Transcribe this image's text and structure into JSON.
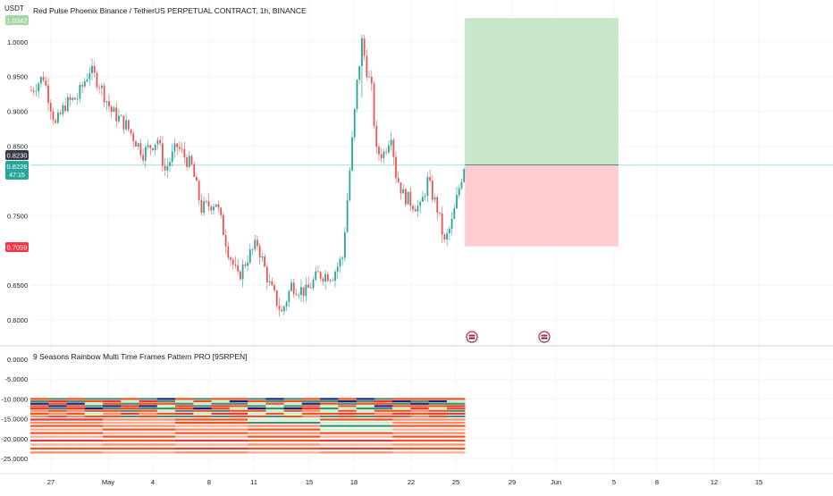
{
  "header": {
    "title": "Red Pulse Phoenix Binance / TetherUS PERPETUAL CONTRACT, 1h, BINANCE",
    "currency": "USDT"
  },
  "price_axis": {
    "top_badge": "1.0342",
    "ticks": [
      "1.0000",
      "0.9500",
      "0.9000",
      "0.8500",
      "0.7500",
      "0.6500",
      "0.6000"
    ]
  },
  "badges": {
    "entry": "0.8230",
    "last_price": "0.8226",
    "countdown": "47:15",
    "stop": "0.7059"
  },
  "indicator": {
    "title": "9 Seasons Rainbow Multi Time Frames Pattern PRO [9SRPEN]",
    "ticks": [
      "0.0000",
      "-5.0000",
      "-10.0000",
      "-15.0000",
      "-20.0000",
      "-25.0000"
    ]
  },
  "time_axis": {
    "labels": [
      "27",
      "May",
      "4",
      "8",
      "11",
      "15",
      "18",
      "22",
      "25",
      "29",
      "Jun",
      "5",
      "8",
      "12",
      "15"
    ]
  },
  "colors": {
    "up": "#26a69a",
    "down": "#ef5350",
    "profit_zone": "#c8e6c9",
    "loss_zone": "#ffcdd2",
    "stop_badge": "#f23645",
    "entry_badge": "#363a45",
    "last_badge": "#26a69a",
    "rainbow": [
      "#f4511e",
      "#ff8a65",
      "#e53935",
      "#4e8a6e",
      "#1a237e",
      "#b9f6ca",
      "#ffab91"
    ]
  },
  "chart_data": [
    {
      "type": "candlestick",
      "title": "Red Pulse Phoenix Binance / TetherUS PERPETUAL CONTRACT, 1h, BINANCE",
      "ylabel": "USDT",
      "timeframe": "1h",
      "ylim": [
        0.58,
        1.05
      ],
      "x_labels": [
        "27",
        "May",
        "4",
        "8",
        "11",
        "15",
        "18",
        "22",
        "25",
        "29",
        "Jun",
        "5",
        "8",
        "12",
        "15"
      ],
      "price_path": [
        [
          0,
          0.93
        ],
        [
          5,
          0.95
        ],
        [
          10,
          0.88
        ],
        [
          14,
          0.91
        ],
        [
          19,
          0.92
        ],
        [
          24,
          0.96
        ],
        [
          28,
          0.94
        ],
        [
          33,
          0.9
        ],
        [
          39,
          0.88
        ],
        [
          46,
          0.84
        ],
        [
          52,
          0.86
        ],
        [
          55,
          0.815
        ],
        [
          60,
          0.85
        ],
        [
          66,
          0.82
        ],
        [
          70,
          0.76
        ],
        [
          76,
          0.77
        ],
        [
          81,
          0.7
        ],
        [
          85,
          0.66
        ],
        [
          89,
          0.69
        ],
        [
          93,
          0.71
        ],
        [
          98,
          0.65
        ],
        [
          103,
          0.61
        ],
        [
          107,
          0.65
        ],
        [
          113,
          0.64
        ],
        [
          118,
          0.665
        ],
        [
          124,
          0.665
        ],
        [
          128,
          0.69
        ],
        [
          131,
          0.815
        ],
        [
          134,
          0.94
        ],
        [
          136,
          1.0
        ],
        [
          138,
          0.96
        ],
        [
          140,
          0.93
        ],
        [
          142,
          0.84
        ],
        [
          145,
          0.84
        ],
        [
          148,
          0.87
        ],
        [
          150,
          0.81
        ],
        [
          153,
          0.78
        ],
        [
          156,
          0.77
        ],
        [
          160,
          0.76
        ],
        [
          163,
          0.8
        ],
        [
          167,
          0.76
        ],
        [
          170,
          0.71
        ],
        [
          173,
          0.74
        ],
        [
          176,
          0.79
        ],
        [
          178,
          0.8226
        ]
      ],
      "position": {
        "type": "long",
        "entry": 0.823,
        "take_profit": 1.0342,
        "stop_loss": 0.7059
      },
      "last_price": 0.8226,
      "countdown": "47:15"
    },
    {
      "type": "heatmap",
      "title": "9 Seasons Rainbow Multi Time Frames Pattern PRO [9SRPEN]",
      "ylim": [
        -25,
        0
      ],
      "y_ticks": [
        0,
        -5,
        -10,
        -15,
        -20,
        -25
      ],
      "bands": [
        {
          "y": -10.0,
          "colors": [
            "#f4511e",
            "#4e8a6e",
            "#f4511e",
            "#4e8a6e",
            "#1a237e",
            "#f4511e"
          ]
        },
        {
          "y": -10.6,
          "colors": [
            "#4e8a6e",
            "#e53935",
            "#b9f6ca",
            "#f4511e",
            "#4e8a6e",
            "#1a237e"
          ]
        },
        {
          "y": -11.2,
          "colors": [
            "#1a237e",
            "#f4511e",
            "#4e8a6e",
            "#b9f6ca",
            "#f4511e",
            "#4e8a6e"
          ]
        },
        {
          "y": -11.8,
          "colors": [
            "#f4511e",
            "#1a237e",
            "#e53935",
            "#4e8a6e",
            "#b9f6ca",
            "#f4511e"
          ]
        },
        {
          "y": -12.4,
          "colors": [
            "#e53935",
            "#4e8a6e",
            "#f4511e",
            "#1a237e",
            "#4e8a6e",
            "#b9f6ca"
          ]
        },
        {
          "y": -13.0,
          "colors": [
            "#ff8a65",
            "#f4511e",
            "#4e8a6e",
            "#f4511e",
            "#b9f6ca",
            "#f4511e"
          ]
        },
        {
          "y": -13.7,
          "colors": [
            "#f4511e",
            "#ff8a65",
            "#e53935",
            "#b9f6ca",
            "#f4511e",
            "#e53935"
          ]
        },
        {
          "y": -14.4,
          "colors": [
            "#ff8a65",
            "#f4511e",
            "#4e8a6e",
            "#f4511e",
            "#4e8a6e",
            "#f4511e"
          ]
        },
        {
          "y": -15.2,
          "colors": [
            "#e53935",
            "#ff8a65",
            "#f4511e",
            "#b9f6ca",
            "#f4511e",
            "#ff8a65"
          ]
        },
        {
          "y": -16.0,
          "colors": [
            "#ff8a65",
            "#ffab91",
            "#f4511e",
            "#4e8a6e",
            "#b9f6ca",
            "#ff8a65"
          ]
        },
        {
          "y": -16.8,
          "colors": [
            "#f4511e",
            "#ff8a65",
            "#ffab91",
            "#ff8a65",
            "#4e8a6e",
            "#f4511e"
          ]
        },
        {
          "y": -17.7,
          "colors": [
            "#ffab91",
            "#f4511e",
            "#ff8a65",
            "#f4511e",
            "#b9f6ca",
            "#ffab91"
          ]
        },
        {
          "y": -18.6,
          "colors": [
            "#f4511e",
            "#ffab91",
            "#f4511e",
            "#ff8a65",
            "#f4511e",
            "#ff8a65"
          ]
        },
        {
          "y": -19.5,
          "colors": [
            "#ffab91",
            "#f4511e",
            "#ffab91",
            "#f4511e",
            "#ffab91",
            "#f4511e"
          ]
        },
        {
          "y": -20.5,
          "colors": [
            "#e53935",
            "#f4511e",
            "#e53935",
            "#f4511e",
            "#e53935",
            "#f4511e"
          ]
        },
        {
          "y": -21.5,
          "colors": [
            "#ffab91",
            "#ff8a65",
            "#ffab91",
            "#ff8a65",
            "#ffab91",
            "#ff8a65"
          ]
        },
        {
          "y": -22.5,
          "colors": [
            "#f4511e",
            "#f4511e",
            "#e53935",
            "#f4511e",
            "#e53935",
            "#f4511e"
          ]
        },
        {
          "y": -23.5,
          "colors": [
            "#ff8a65",
            "#ffab91",
            "#ff8a65",
            "#ffab91",
            "#ff8a65",
            "#ffab91"
          ]
        }
      ]
    }
  ]
}
